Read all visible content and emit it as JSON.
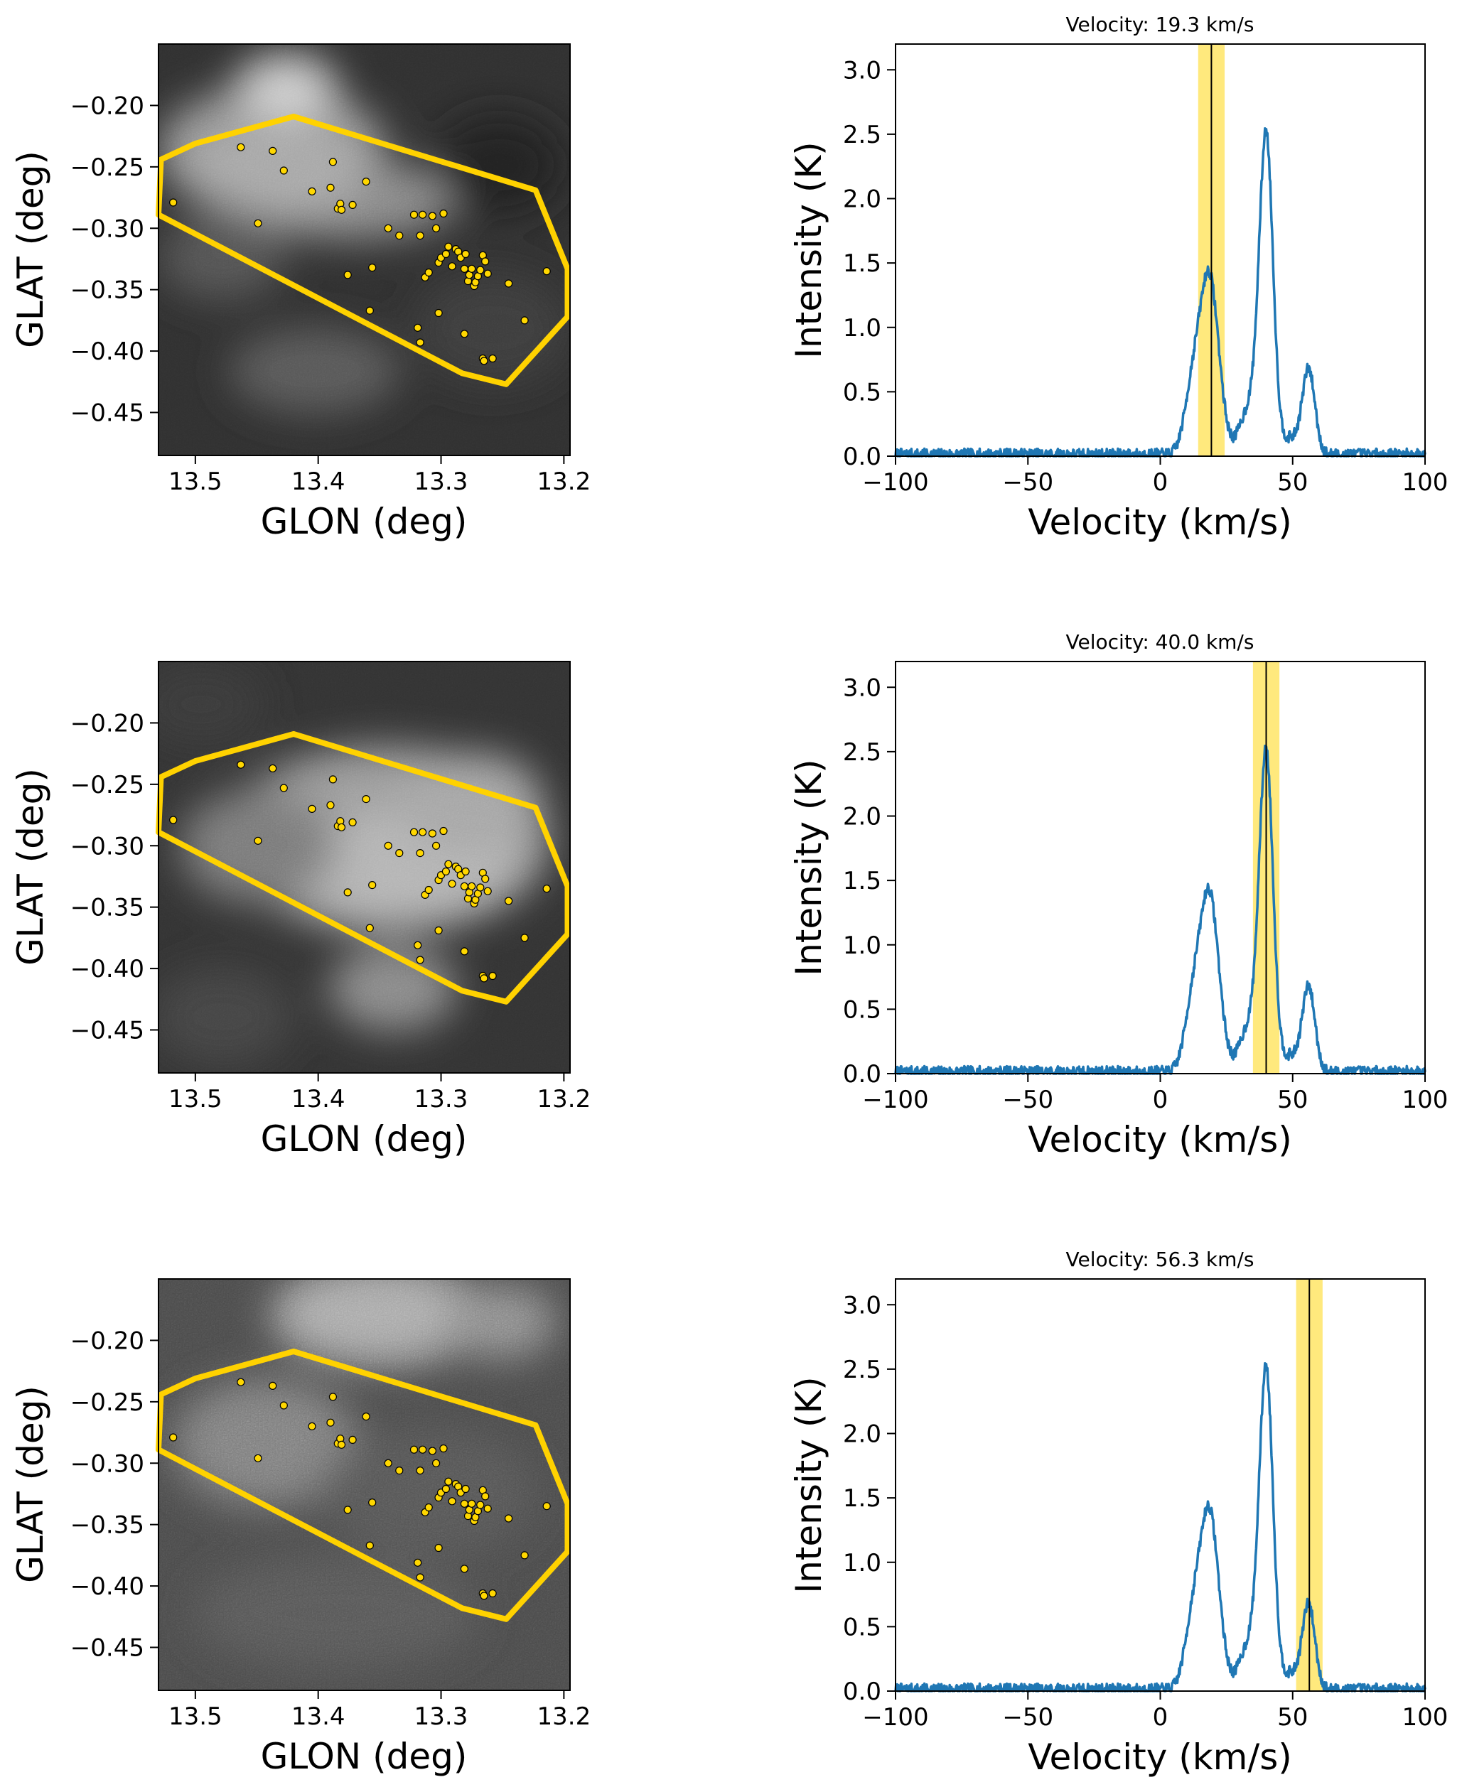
{
  "chart_data": [
    {
      "type": "heatmap",
      "panel": "row1-map",
      "xlabel": "GLON (deg)",
      "ylabel": "GLAT (deg)",
      "xlim": [
        13.53,
        13.195
      ],
      "ylim": [
        -0.485,
        -0.15
      ],
      "xticks": [
        13.5,
        13.4,
        13.3,
        13.2
      ],
      "yticks": [
        -0.2,
        -0.25,
        -0.3,
        -0.35,
        -0.4,
        -0.45
      ],
      "colormap": "gray",
      "emission_peak": "upper-left"
    },
    {
      "type": "line",
      "panel": "row1-spectrum",
      "title": "Velocity: 19.3 km/s",
      "xlabel": "Velocity (km/s)",
      "ylabel": "Intensity (K)",
      "xlim": [
        -100,
        100
      ],
      "ylim": [
        0,
        3.2
      ],
      "xticks": [
        -100,
        -50,
        0,
        50,
        100
      ],
      "yticks": [
        0.0,
        0.5,
        1.0,
        1.5,
        2.0,
        2.5,
        3.0
      ],
      "marker_velocity": 19.3,
      "band": [
        14.3,
        24.3
      ],
      "peaks": [
        {
          "v": 18.5,
          "T": 1.4
        },
        {
          "v": 40,
          "T": 2.55
        },
        {
          "v": 56,
          "T": 0.72
        }
      ]
    },
    {
      "type": "heatmap",
      "panel": "row2-map",
      "xlabel": "GLON (deg)",
      "ylabel": "GLAT (deg)",
      "xlim": [
        13.53,
        13.195
      ],
      "ylim": [
        -0.485,
        -0.15
      ],
      "xticks": [
        13.5,
        13.4,
        13.3,
        13.2
      ],
      "yticks": [
        -0.2,
        -0.25,
        -0.3,
        -0.35,
        -0.4,
        -0.45
      ],
      "colormap": "gray",
      "emission_peak": "center"
    },
    {
      "type": "line",
      "panel": "row2-spectrum",
      "title": "Velocity: 40.0 km/s",
      "xlabel": "Velocity (km/s)",
      "ylabel": "Intensity (K)",
      "xlim": [
        -100,
        100
      ],
      "ylim": [
        0,
        3.2
      ],
      "xticks": [
        -100,
        -50,
        0,
        50,
        100
      ],
      "yticks": [
        0.0,
        0.5,
        1.0,
        1.5,
        2.0,
        2.5,
        3.0
      ],
      "marker_velocity": 40.0,
      "band": [
        35.0,
        45.0
      ],
      "peaks": [
        {
          "v": 18.5,
          "T": 1.4
        },
        {
          "v": 40,
          "T": 2.55
        },
        {
          "v": 56,
          "T": 0.72
        }
      ]
    },
    {
      "type": "heatmap",
      "panel": "row3-map",
      "xlabel": "GLON (deg)",
      "ylabel": "GLAT (deg)",
      "xlim": [
        13.53,
        13.195
      ],
      "ylim": [
        -0.485,
        -0.15
      ],
      "xticks": [
        13.5,
        13.4,
        13.3,
        13.2
      ],
      "yticks": [
        -0.2,
        -0.25,
        -0.3,
        -0.35,
        -0.4,
        -0.45
      ],
      "colormap": "gray",
      "emission_peak": "top"
    },
    {
      "type": "line",
      "panel": "row3-spectrum",
      "title": "Velocity: 56.3 km/s",
      "xlabel": "Velocity (km/s)",
      "ylabel": "Intensity (K)",
      "xlim": [
        -100,
        100
      ],
      "ylim": [
        0,
        3.2
      ],
      "xticks": [
        -100,
        -50,
        0,
        50,
        100
      ],
      "yticks": [
        0.0,
        0.5,
        1.0,
        1.5,
        2.0,
        2.5,
        3.0
      ],
      "marker_velocity": 56.3,
      "band": [
        51.3,
        61.3
      ],
      "peaks": [
        {
          "v": 18.5,
          "T": 1.4
        },
        {
          "v": 40,
          "T": 2.55
        },
        {
          "v": 56,
          "T": 0.72
        }
      ]
    }
  ],
  "region_polygon": [
    [
      13.528,
      -0.244
    ],
    [
      13.5,
      -0.231
    ],
    [
      13.42,
      -0.209
    ],
    [
      13.223,
      -0.269
    ],
    [
      13.197,
      -0.333
    ],
    [
      13.197,
      -0.372
    ],
    [
      13.247,
      -0.427
    ],
    [
      13.283,
      -0.418
    ],
    [
      13.53,
      -0.289
    ]
  ],
  "sources": [
    [
      13.518,
      -0.279
    ],
    [
      13.463,
      -0.234
    ],
    [
      13.449,
      -0.296
    ],
    [
      13.437,
      -0.237
    ],
    [
      13.428,
      -0.253
    ],
    [
      13.405,
      -0.27
    ],
    [
      13.39,
      -0.267
    ],
    [
      13.384,
      -0.284
    ],
    [
      13.382,
      -0.28
    ],
    [
      13.381,
      -0.285
    ],
    [
      13.376,
      -0.338
    ],
    [
      13.372,
      -0.281
    ],
    [
      13.388,
      -0.246
    ],
    [
      13.361,
      -0.262
    ],
    [
      13.358,
      -0.367
    ],
    [
      13.356,
      -0.332
    ],
    [
      13.343,
      -0.3
    ],
    [
      13.334,
      -0.306
    ],
    [
      13.322,
      -0.289
    ],
    [
      13.317,
      -0.306
    ],
    [
      13.315,
      -0.289
    ],
    [
      13.313,
      -0.34
    ],
    [
      13.31,
      -0.336
    ],
    [
      13.307,
      -0.29
    ],
    [
      13.304,
      -0.3
    ],
    [
      13.302,
      -0.328
    ],
    [
      13.3,
      -0.324
    ],
    [
      13.298,
      -0.288
    ],
    [
      13.296,
      -0.321
    ],
    [
      13.294,
      -0.315
    ],
    [
      13.291,
      -0.331
    ],
    [
      13.288,
      -0.317
    ],
    [
      13.286,
      -0.319
    ],
    [
      13.284,
      -0.324
    ],
    [
      13.281,
      -0.333
    ],
    [
      13.28,
      -0.321
    ],
    [
      13.278,
      -0.343
    ],
    [
      13.277,
      -0.338
    ],
    [
      13.275,
      -0.333
    ],
    [
      13.273,
      -0.347
    ],
    [
      13.272,
      -0.344
    ],
    [
      13.27,
      -0.339
    ],
    [
      13.268,
      -0.334
    ],
    [
      13.266,
      -0.322
    ],
    [
      13.264,
      -0.327
    ],
    [
      13.262,
      -0.337
    ],
    [
      13.319,
      -0.381
    ],
    [
      13.317,
      -0.393
    ],
    [
      13.302,
      -0.369
    ],
    [
      13.281,
      -0.386
    ],
    [
      13.266,
      -0.406
    ],
    [
      13.258,
      -0.406
    ],
    [
      13.245,
      -0.345
    ],
    [
      13.232,
      -0.375
    ],
    [
      13.214,
      -0.335
    ],
    [
      13.265,
      -0.408
    ]
  ]
}
